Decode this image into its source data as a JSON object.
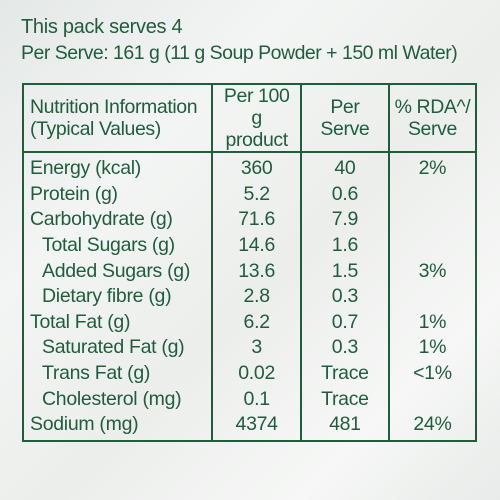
{
  "header": {
    "serves": "This pack serves 4",
    "per_serve": "Per Serve: 161 g (11 g Soup Powder + 150 ml Water)"
  },
  "table": {
    "headers": {
      "name_line1": "Nutrition Information",
      "name_line2": "(Typical Values)",
      "per100_line1": "Per 100 g",
      "per100_line2": "product",
      "per_serve": "Per Serve",
      "rda_line1": "% RDA^/",
      "rda_line2": "Serve"
    },
    "rows": [
      {
        "name": "Energy (kcal)",
        "per100": "360",
        "serve": "40",
        "rda": "2%",
        "indent": false
      },
      {
        "name": "Protein (g)",
        "per100": "5.2",
        "serve": "0.6",
        "rda": "",
        "indent": false
      },
      {
        "name": "Carbohydrate (g)",
        "per100": "71.6",
        "serve": "7.9",
        "rda": "",
        "indent": false
      },
      {
        "name": "Total Sugars (g)",
        "per100": "14.6",
        "serve": "1.6",
        "rda": "",
        "indent": true
      },
      {
        "name": "Added Sugars (g)",
        "per100": "13.6",
        "serve": "1.5",
        "rda": "3%",
        "indent": true
      },
      {
        "name": "Dietary fibre (g)",
        "per100": "2.8",
        "serve": "0.3",
        "rda": "",
        "indent": true
      },
      {
        "name": "Total Fat (g)",
        "per100": "6.2",
        "serve": "0.7",
        "rda": "1%",
        "indent": false
      },
      {
        "name": "Saturated Fat (g)",
        "per100": "3",
        "serve": "0.3",
        "rda": "1%",
        "indent": true
      },
      {
        "name": "Trans Fat (g)",
        "per100": "0.02",
        "serve": "Trace",
        "rda": "<1%",
        "indent": true
      },
      {
        "name": "Cholesterol (mg)",
        "per100": "0.1",
        "serve": "Trace",
        "rda": "",
        "indent": true
      },
      {
        "name": "Sodium (mg)",
        "per100": "4374",
        "serve": "481",
        "rda": "24%",
        "indent": false
      }
    ]
  },
  "colors": {
    "text": "#1f5d3c",
    "background": "#eef0ef"
  }
}
